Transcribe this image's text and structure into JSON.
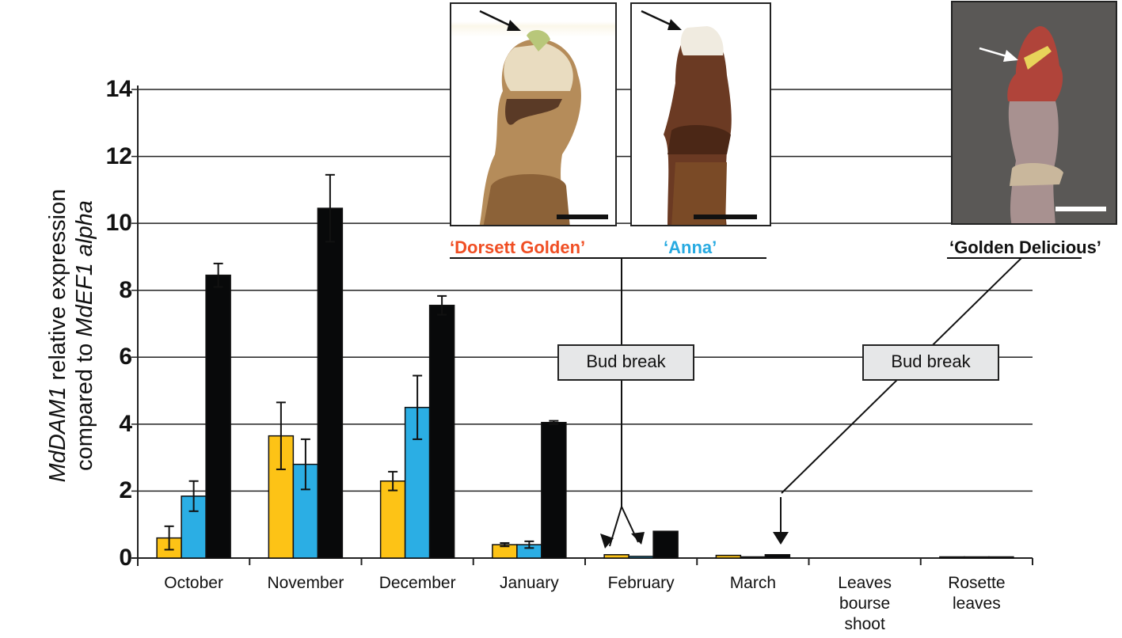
{
  "chart_data": {
    "type": "bar",
    "title": "",
    "xlabel": "",
    "ylabel": "MdDAM1 relative expression compared to MdEF1 alpha",
    "ylabel_lines": [
      "MdDAM1 relative expression",
      "compared to MdEF1 alpha"
    ],
    "ylim": [
      0,
      14
    ],
    "yticks": [
      "0",
      "2",
      "4",
      "6",
      "8",
      "10",
      "12",
      "14"
    ],
    "grid": true,
    "categories": [
      "October",
      "November",
      "December",
      "January",
      "February",
      "March",
      "Leaves bourse shoot",
      "Rosette leaves"
    ],
    "series": [
      {
        "name": "Dorsett Golden",
        "color": "#FDC316",
        "values": [
          0.6,
          3.65,
          2.3,
          0.4,
          0.1,
          0.08,
          0.0,
          0.02
        ],
        "errors": [
          0.35,
          1.0,
          0.28,
          0.05,
          0.03,
          0.03,
          0.0,
          0.0
        ]
      },
      {
        "name": "Anna",
        "color": "#2BAEE4",
        "values": [
          1.85,
          2.8,
          4.5,
          0.4,
          0.05,
          0.01,
          0.0,
          0.02
        ],
        "errors": [
          0.45,
          0.75,
          0.95,
          0.1,
          0.02,
          0.0,
          0.0,
          0.0
        ]
      },
      {
        "name": "Golden Delicious",
        "color": "#08090A",
        "values": [
          8.45,
          10.45,
          7.55,
          4.05,
          0.8,
          0.1,
          0.0,
          0.02
        ],
        "errors": [
          0.35,
          1.0,
          0.28,
          0.05,
          0.02,
          0.03,
          0.0,
          0.0
        ]
      }
    ],
    "annotations": [
      {
        "text": "Bud break",
        "target": "February (Dorsett Golden, Anna)"
      },
      {
        "text": "Bud break",
        "target": "March (Golden Delicious)"
      }
    ],
    "legend": "cultivar names placed above bud photographs"
  },
  "axis": {
    "yticks": [
      "0",
      "2",
      "4",
      "6",
      "8",
      "10",
      "12",
      "14"
    ],
    "ytitle_gene": "MdDAM1",
    "ytitle_rest1": " relative expression",
    "ytitle_prefix2": "compared to ",
    "ytitle_gene2": "MdEF1 alpha",
    "xlabels": [
      [
        "October"
      ],
      [
        "November"
      ],
      [
        "December"
      ],
      [
        "January"
      ],
      [
        "February"
      ],
      [
        "March"
      ],
      [
        "Leaves",
        "bourse",
        "shoot"
      ],
      [
        "Rosette",
        "leaves"
      ]
    ]
  },
  "annotations": {
    "bud_break_1": "Bud break",
    "bud_break_2": "Bud break"
  },
  "cultivars": {
    "dorsett": {
      "label": "‘Dorsett Golden’",
      "color": "#F04E23"
    },
    "anna": {
      "label": "‘Anna’",
      "color": "#27AAE1"
    },
    "golden": {
      "label": "‘Golden Delicious’",
      "color": "#111111"
    }
  }
}
